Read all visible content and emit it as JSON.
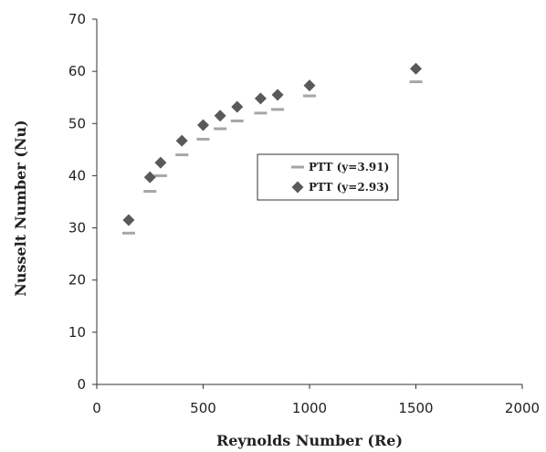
{
  "chart_data": {
    "type": "scatter",
    "xlabel": "Reynolds Number (Re)",
    "ylabel": "Nusselt Number (Nu)",
    "xlim": [
      0,
      2000
    ],
    "ylim": [
      0,
      70
    ],
    "xticks": [
      0,
      500,
      1000,
      1500,
      2000
    ],
    "yticks": [
      0,
      10,
      20,
      30,
      40,
      50,
      60,
      70
    ],
    "xtick_labels": [
      "0",
      "500",
      "1000",
      "1500",
      "2000"
    ],
    "ytick_labels": [
      "0",
      "10",
      "20",
      "30",
      "40",
      "50",
      "60",
      "70"
    ],
    "grid": false,
    "legend_position": "center-right",
    "series": [
      {
        "name": "PTT (y=3.91)",
        "marker": "dash",
        "color": "#a6a6a6",
        "x": [
          150,
          250,
          300,
          400,
          500,
          580,
          660,
          770,
          850,
          1000,
          1500
        ],
        "y": [
          29,
          37,
          40,
          44,
          47,
          49,
          50.5,
          52,
          52.7,
          55.3,
          58
        ]
      },
      {
        "name": "PTT (y=2.93)",
        "marker": "diamond",
        "color": "#595959",
        "x": [
          150,
          250,
          300,
          400,
          500,
          580,
          660,
          770,
          850,
          1000,
          1500
        ],
        "y": [
          31.5,
          39.7,
          42.5,
          46.7,
          49.7,
          51.5,
          53.2,
          54.8,
          55.5,
          57.3,
          60.5
        ]
      }
    ]
  }
}
